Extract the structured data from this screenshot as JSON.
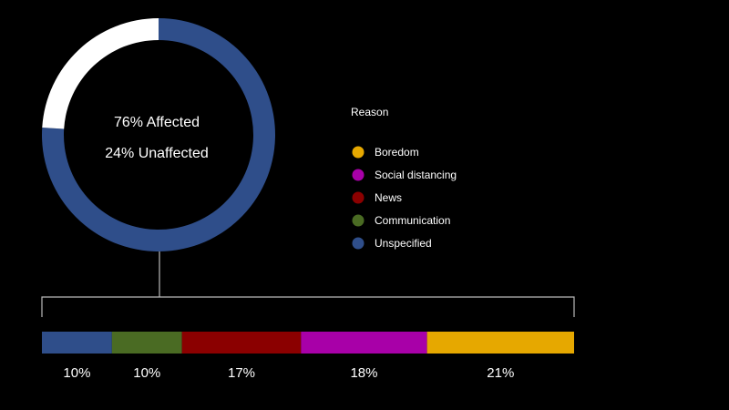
{
  "chart_data": [
    {
      "type": "pie",
      "variant": "donut",
      "slices": [
        {
          "label": "Affected",
          "value": 76,
          "color": "#2f4e8a"
        },
        {
          "label": "Unaffected",
          "value": 24,
          "color": "#ffffff"
        }
      ],
      "center_labels": [
        "76% Affected",
        "24% Unaffected"
      ]
    },
    {
      "type": "bar",
      "orientation": "horizontal-stacked",
      "legend_title": "Reason",
      "legend_position": "right",
      "segments": [
        {
          "name": "Unspecified",
          "value": 10,
          "label": "10%",
          "color": "#2f4e8a"
        },
        {
          "name": "Communication",
          "value": 10,
          "label": "10%",
          "color": "#4a6b23"
        },
        {
          "name": "News",
          "value": 17,
          "label": "17%",
          "color": "#8b0000"
        },
        {
          "name": "Social distancing",
          "value": 18,
          "label": "18%",
          "color": "#a800a8"
        },
        {
          "name": "Boredom",
          "value": 21,
          "label": "21%",
          "color": "#e6a800"
        }
      ],
      "legend_order": [
        "Boredom",
        "Social distancing",
        "News",
        "Communication",
        "Unspecified"
      ]
    }
  ]
}
